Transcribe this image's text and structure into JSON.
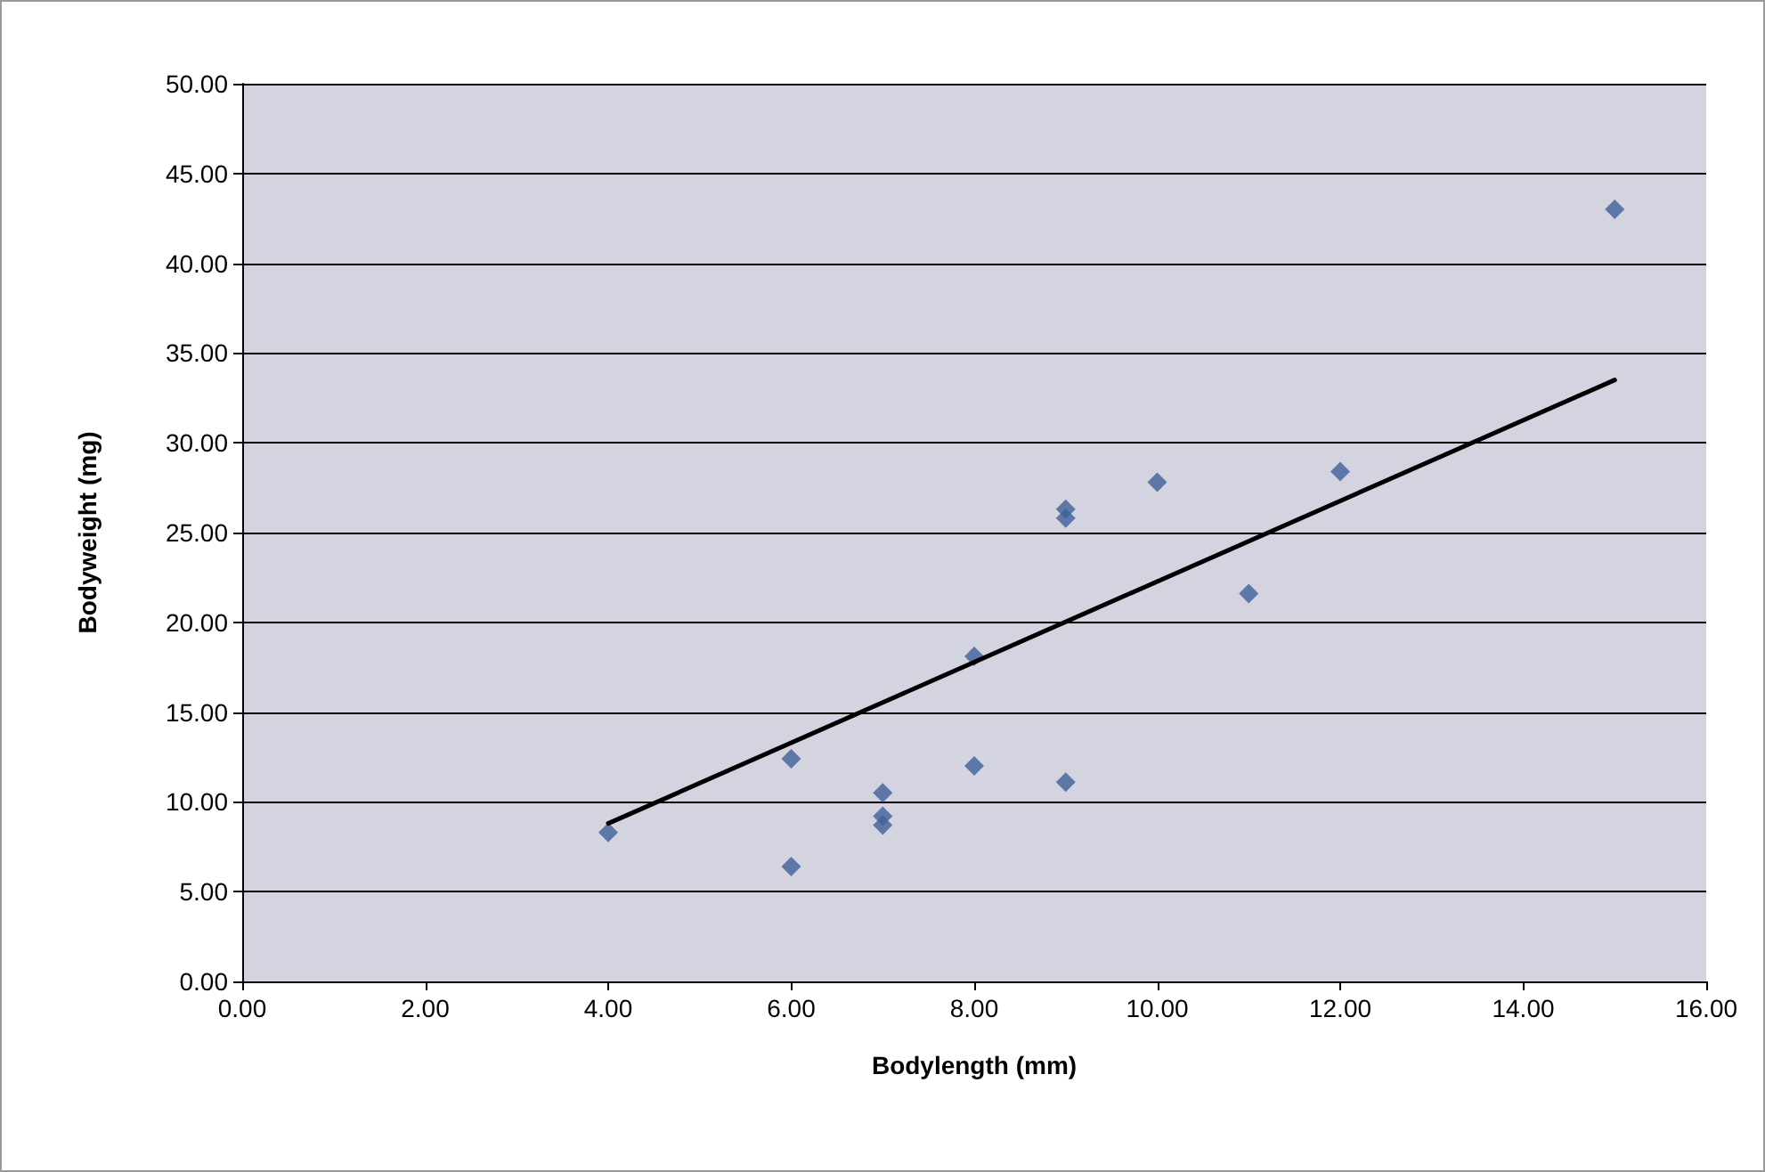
{
  "chart_data": {
    "type": "scatter",
    "xlabel": "Bodylength (mm)",
    "ylabel": "Bodyweight (mg)",
    "xlim": [
      0,
      16
    ],
    "xticks": [
      {
        "value": 0,
        "label": "0.00"
      },
      {
        "value": 2,
        "label": "2.00"
      },
      {
        "value": 4,
        "label": "4.00"
      },
      {
        "value": 6,
        "label": "6.00"
      },
      {
        "value": 8,
        "label": "8.00"
      },
      {
        "value": 10,
        "label": "10.00"
      },
      {
        "value": 12,
        "label": "12.00"
      },
      {
        "value": 14,
        "label": "14.00"
      },
      {
        "value": 16,
        "label": "16.00"
      }
    ],
    "ylim": [
      0,
      50
    ],
    "yticks": [
      {
        "value": 0,
        "label": "0.00"
      },
      {
        "value": 5,
        "label": "5.00"
      },
      {
        "value": 10,
        "label": "10.00"
      },
      {
        "value": 15,
        "label": "15.00"
      },
      {
        "value": 20,
        "label": "20.00"
      },
      {
        "value": 25,
        "label": "25.00"
      },
      {
        "value": 30,
        "label": "30.00"
      },
      {
        "value": 35,
        "label": "35.00"
      },
      {
        "value": 40,
        "label": "40.00"
      },
      {
        "value": 45,
        "label": "45.00"
      },
      {
        "value": 50,
        "label": "50.00"
      }
    ],
    "grid": "y",
    "marker": "diamond",
    "series": [
      {
        "color": "#3f5f9a",
        "x": [
          4,
          6,
          6,
          7,
          7,
          7,
          8,
          8,
          9,
          9,
          9,
          10,
          11,
          12,
          15
        ],
        "values": [
          8.3,
          12.4,
          6.4,
          10.5,
          9.2,
          8.7,
          18.1,
          12.0,
          26.3,
          25.8,
          11.1,
          27.8,
          21.6,
          28.4,
          43.0
        ]
      },
      {
        "type": "line",
        "color": "#000000",
        "marker": "none",
        "line_style": "solid",
        "x": [
          4,
          15
        ],
        "values": [
          8.8,
          33.5
        ]
      }
    ]
  }
}
